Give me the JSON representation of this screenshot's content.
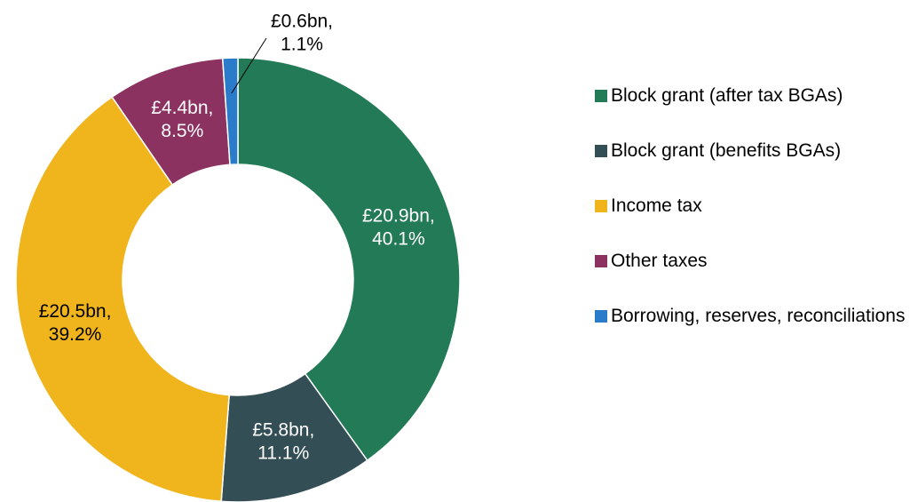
{
  "chart_data": {
    "type": "pie",
    "categories": [
      "Block grant (after tax BGAs)",
      "Block grant (benefits BGAs)",
      "Income tax",
      "Other taxes",
      "Borrowing, reserves, reconciliations"
    ],
    "values": [
      40.1,
      11.1,
      39.2,
      8.5,
      1.1
    ],
    "value_labels": [
      [
        "£20.9bn,",
        "40.1%"
      ],
      [
        "£5.8bn,",
        "11.1%"
      ],
      [
        "£20.5bn,",
        "39.2%"
      ],
      [
        "£4.4bn,",
        "8.5%"
      ],
      [
        "£0.6bn,",
        "1.1%"
      ]
    ],
    "colors": [
      "#237a57",
      "#344e55",
      "#f0b41c",
      "#8c3261",
      "#2a7ccb"
    ],
    "donut": true,
    "legend": "right"
  }
}
